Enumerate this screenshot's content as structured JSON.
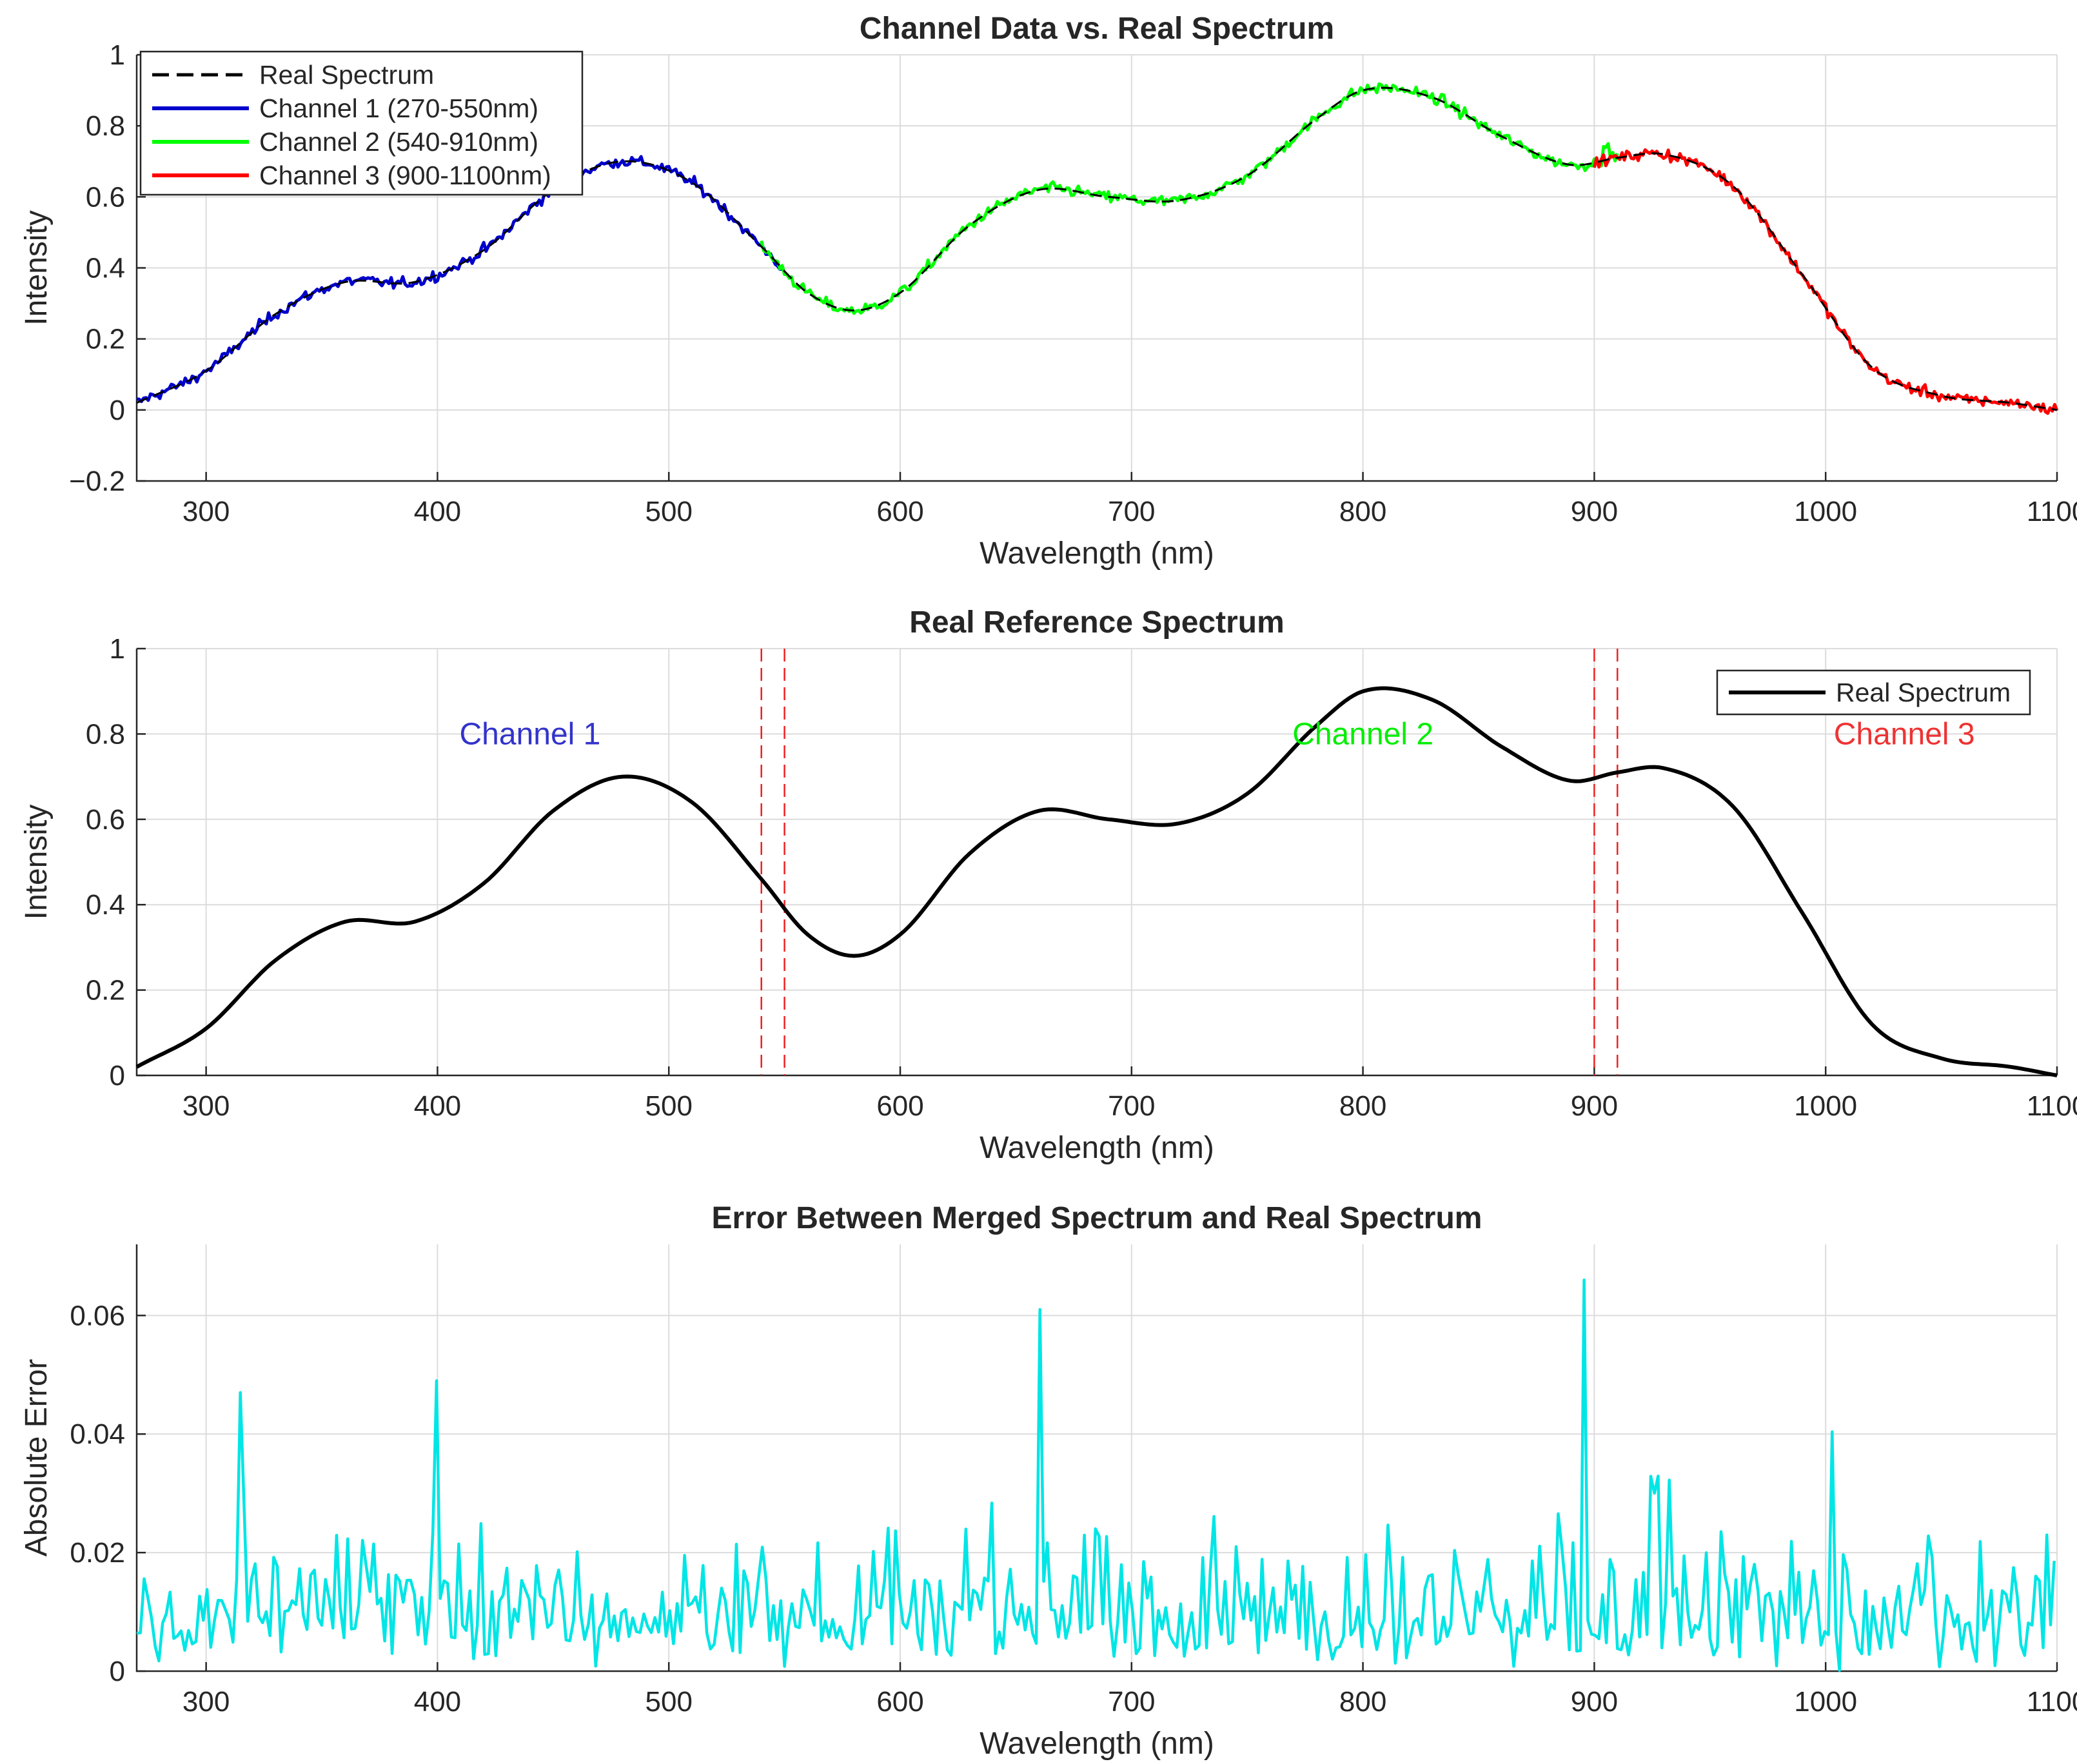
{
  "chart_data": [
    {
      "type": "line",
      "title": "Channel Data vs. Real Spectrum",
      "xlabel": "Wavelength (nm)",
      "ylabel": "Intensity",
      "xlim": [
        270,
        1100
      ],
      "ylim": [
        -0.2,
        1
      ],
      "xticks": [
        300,
        400,
        500,
        600,
        700,
        800,
        900,
        1000,
        1100
      ],
      "yticks": [
        -0.2,
        0,
        0.2,
        0.4,
        0.6,
        0.8,
        1
      ],
      "ytick_labels": [
        "−0.2",
        "0",
        "0.2",
        "0.4",
        "0.6",
        "0.8",
        "1"
      ],
      "grid": true,
      "legend_position": "top-left",
      "legend": [
        "Real Spectrum",
        "Channel 1 (270-550nm)",
        "Channel 2 (540-910nm)",
        "Channel 3 (900-1100nm)"
      ],
      "series": [
        {
          "name": "Real Spectrum",
          "style": "dashed",
          "color": "#000000",
          "x": [
            270,
            300,
            330,
            360,
            390,
            420,
            450,
            480,
            510,
            540,
            560,
            580,
            600,
            630,
            660,
            690,
            720,
            750,
            780,
            800,
            830,
            860,
            890,
            910,
            930,
            960,
            990,
            1020,
            1050,
            1080,
            1100
          ],
          "values": [
            0.02,
            0.11,
            0.27,
            0.36,
            0.36,
            0.45,
            0.62,
            0.7,
            0.64,
            0.46,
            0.33,
            0.28,
            0.33,
            0.52,
            0.62,
            0.6,
            0.59,
            0.66,
            0.82,
            0.9,
            0.88,
            0.77,
            0.69,
            0.71,
            0.72,
            0.63,
            0.38,
            0.12,
            0.04,
            0.02,
            0.0
          ]
        },
        {
          "name": "Channel 1 (270-550nm)",
          "color": "#0000cc",
          "x_range": [
            270,
            550
          ],
          "noise": 0.02
        },
        {
          "name": "Channel 2 (540-910nm)",
          "color": "#00ff00",
          "x_range": [
            540,
            910
          ],
          "noise": 0.02
        },
        {
          "name": "Channel 3 (900-1100nm)",
          "color": "#ff0000",
          "x_range": [
            900,
            1100
          ],
          "noise": 0.02
        }
      ]
    },
    {
      "type": "line",
      "title": "Real Reference Spectrum",
      "xlabel": "Wavelength (nm)",
      "ylabel": "Intensity",
      "xlim": [
        270,
        1100
      ],
      "ylim": [
        0,
        1
      ],
      "xticks": [
        300,
        400,
        500,
        600,
        700,
        800,
        900,
        1000,
        1100
      ],
      "yticks": [
        0,
        0.2,
        0.4,
        0.6,
        0.8,
        1
      ],
      "ytick_labels": [
        "0",
        "0.2",
        "0.4",
        "0.6",
        "0.8",
        "1"
      ],
      "grid": true,
      "legend_position": "top-right",
      "legend": [
        "Real Spectrum"
      ],
      "boundary_lines": [
        540,
        550,
        900,
        910
      ],
      "annotations": [
        {
          "text": "Channel 1",
          "x": 440,
          "y": 0.8,
          "color": "#3333cc"
        },
        {
          "text": "Channel 2",
          "x": 800,
          "y": 0.8,
          "color": "#00ee00"
        },
        {
          "text": "Channel 3",
          "x": 1034,
          "y": 0.8,
          "color": "#ee3333"
        }
      ],
      "series": [
        {
          "name": "Real Spectrum",
          "color": "#000000",
          "x": [
            270,
            300,
            330,
            360,
            390,
            420,
            450,
            480,
            510,
            540,
            560,
            580,
            600,
            630,
            660,
            690,
            720,
            750,
            780,
            800,
            830,
            860,
            890,
            910,
            930,
            960,
            990,
            1020,
            1050,
            1080,
            1100
          ],
          "values": [
            0.02,
            0.11,
            0.27,
            0.36,
            0.36,
            0.45,
            0.62,
            0.7,
            0.64,
            0.46,
            0.33,
            0.28,
            0.33,
            0.52,
            0.62,
            0.6,
            0.59,
            0.66,
            0.82,
            0.9,
            0.88,
            0.77,
            0.69,
            0.71,
            0.72,
            0.63,
            0.38,
            0.12,
            0.04,
            0.02,
            0.0
          ]
        }
      ]
    },
    {
      "type": "line",
      "title": "Error Between Merged Spectrum and Real Spectrum",
      "xlabel": "Wavelength (nm)",
      "ylabel": "Absolute Error",
      "xlim": [
        270,
        1100
      ],
      "ylim": [
        0,
        0.072
      ],
      "xticks": [
        300,
        400,
        500,
        600,
        700,
        800,
        900,
        1000,
        1100
      ],
      "yticks": [
        0,
        0.02,
        0.04,
        0.06
      ],
      "ytick_labels": [
        "0",
        "0.02",
        "0.04",
        "0.06"
      ],
      "grid": true,
      "series": [
        {
          "name": "Absolute Error",
          "color": "#00e5e5",
          "typical_max": 0.04,
          "peaks": [
            {
              "x": 660,
              "y": 0.061
            },
            {
              "x": 895,
              "y": 0.066
            },
            {
              "x": 400,
              "y": 0.049
            },
            {
              "x": 315,
              "y": 0.047
            }
          ]
        }
      ]
    }
  ]
}
